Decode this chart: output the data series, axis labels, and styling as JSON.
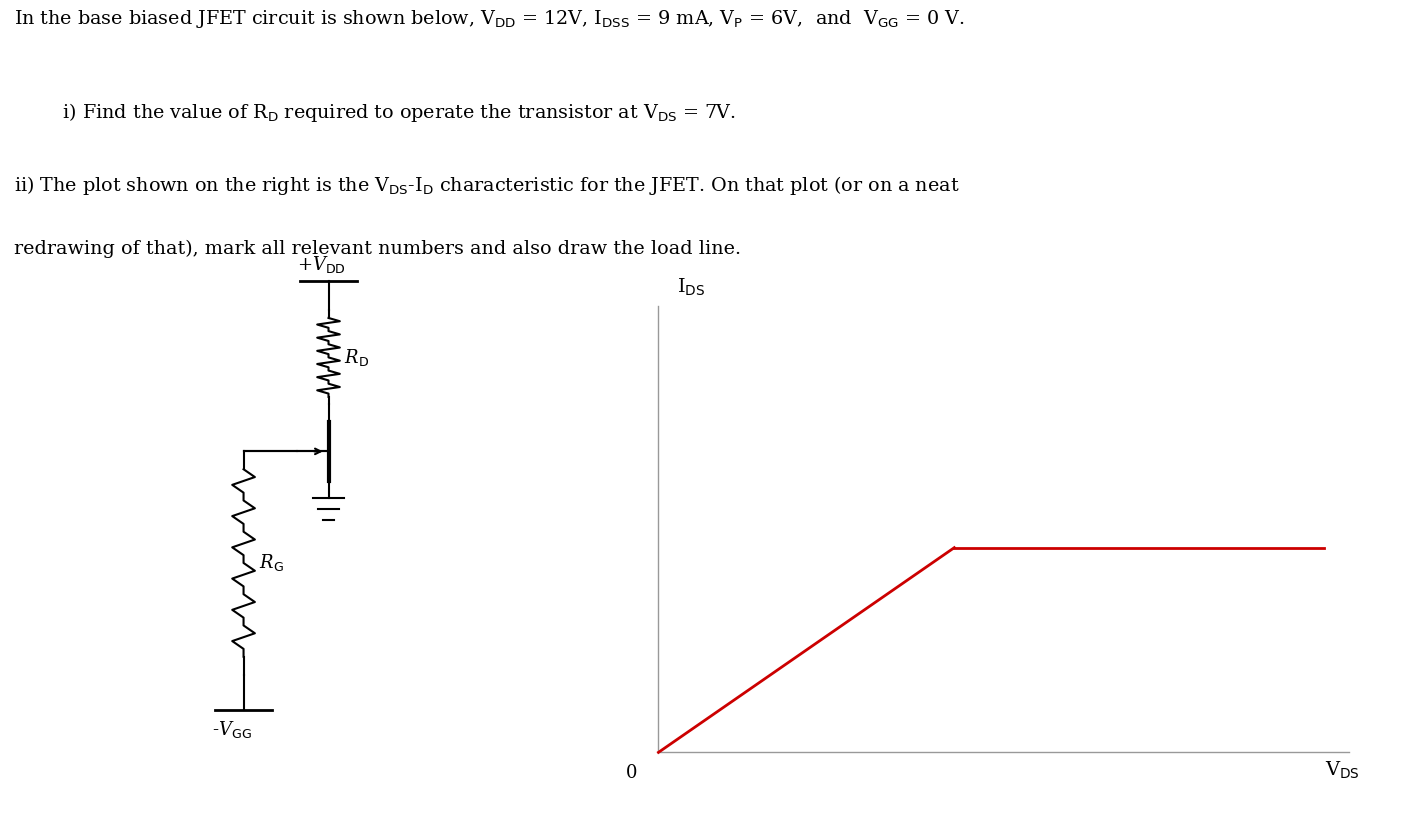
{
  "VDD": 12,
  "IDSS": 9,
  "VP": 6,
  "VGG": 0,
  "VDS_op": 7,
  "background_color": "#ffffff",
  "text_color": "#000000",
  "curve_color": "#cc0000",
  "axis_color": "#999999",
  "line1": "In the base biased JFET circuit is shown below, V$_{\\mathrm{DD}}$ = 12V, I$_{\\mathrm{DSS}}$ = 9 mA, V$_{\\mathrm{P}}$ = 6V,  and  V$_{\\mathrm{GG}}$ = 0 V.",
  "line2": "        i) Find the value of R$_{\\mathrm{D}}$ required to operate the transistor at V$_{\\mathrm{DS}}$ = 7V.",
  "line3": "ii) The plot shown on the right is the V$_{\\mathrm{DS}}$-I$_{\\mathrm{D}}$ characteristic for the JFET. On that plot (or on a neat",
  "line4": "redrawing of that), mark all relevant numbers and also draw the load line.",
  "ids_label": "I$_{\\mathrm{DS}}$",
  "vds_label": "V$_{\\mathrm{DS}}$",
  "vdd_label": "+V$_{\\mathrm{DD}}$",
  "rd_label": "R$_{\\mathrm{D}}$",
  "rg_label": "R$_{\\mathrm{G}}$",
  "vgg_label": "-V$_{\\mathrm{GG}}$"
}
